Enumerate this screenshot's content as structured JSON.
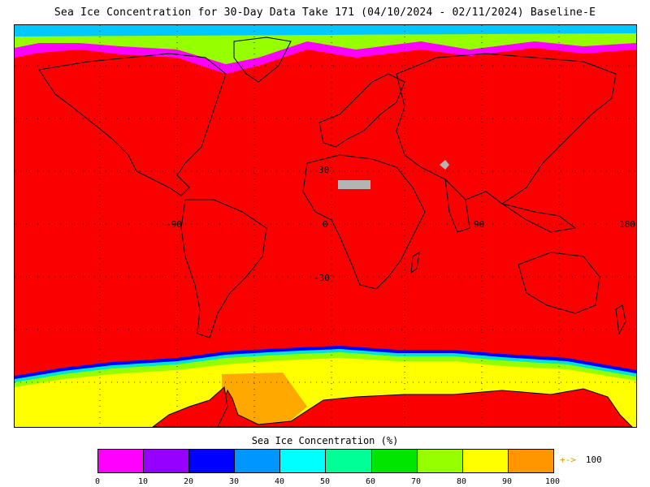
{
  "title": "Sea Ice Concentration for 30-Day Data Take 171 (04/10/2024 - 02/11/2024) Baseline-E",
  "map": {
    "grid_labels": [
      "30",
      "-90",
      "0",
      "90",
      "180",
      "-30"
    ],
    "ocean_color": "#fb0000",
    "land_color": "#fb0000",
    "missing_color": "#b4b4b4"
  },
  "colorbar": {
    "title": "Sea Ice Concentration (%)",
    "colors": [
      "#ff00ff",
      "#9600ff",
      "#0000ff",
      "#0096ff",
      "#00ffff",
      "#00ff96",
      "#00e600",
      "#96ff00",
      "#ffff00",
      "#ff9600"
    ],
    "ticks": [
      "0",
      "10",
      "20",
      "30",
      "40",
      "50",
      "60",
      "70",
      "80",
      "90",
      "100"
    ],
    "overflow_arrow": "+->",
    "overflow_value": "100"
  }
}
